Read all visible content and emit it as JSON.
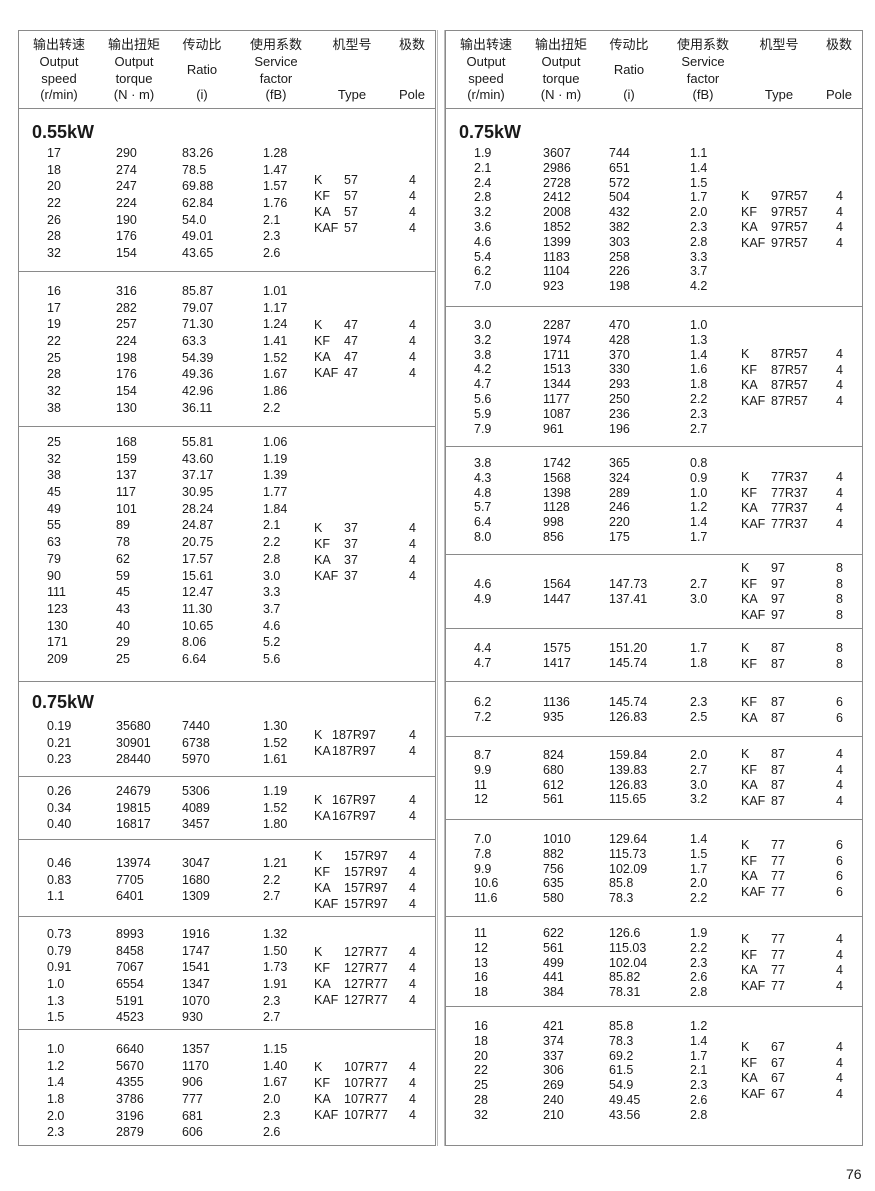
{
  "header": {
    "columns": [
      {
        "cn": "输出转速",
        "en": [
          "Output",
          "speed"
        ],
        "unit": "(r/min)"
      },
      {
        "cn": "输出扭矩",
        "en": [
          "Output",
          "torque"
        ],
        "unit": "(N · m)"
      },
      {
        "cn": "传动比",
        "en": [
          "Ratio"
        ],
        "unit": "(i)"
      },
      {
        "cn": "使用系数",
        "en": [
          "Service",
          "factor"
        ],
        "unit": "(fB)"
      },
      {
        "cn": "机型号",
        "en": [],
        "unit": "Type"
      },
      {
        "cn": "极数",
        "en": [],
        "unit": "Pole"
      }
    ]
  },
  "left": {
    "sections": [
      {
        "title": "0.55kW",
        "rows": [
          [
            "17",
            "290",
            "83.26",
            "1.28"
          ],
          [
            "18",
            "274",
            "78.5",
            "1.47"
          ],
          [
            "20",
            "247",
            "69.88",
            "1.57"
          ],
          [
            "22",
            "224",
            "62.84",
            "1.76"
          ],
          [
            "26",
            "190",
            "54.0",
            "2.1"
          ],
          [
            "28",
            "176",
            "49.01",
            "2.3"
          ],
          [
            "32",
            "154",
            "43.65",
            "2.6"
          ]
        ],
        "types": [
          [
            "K",
            "57",
            "4"
          ],
          [
            "KF",
            "57",
            "4"
          ],
          [
            "KA",
            "57",
            "4"
          ],
          [
            "KAF",
            "57",
            "4"
          ]
        ]
      },
      {
        "title": "",
        "rows": [
          [
            "16",
            "316",
            "85.87",
            "1.01"
          ],
          [
            "17",
            "282",
            "79.07",
            "1.17"
          ],
          [
            "19",
            "257",
            "71.30",
            "1.24"
          ],
          [
            "22",
            "224",
            "63.3",
            "1.41"
          ],
          [
            "25",
            "198",
            "54.39",
            "1.52"
          ],
          [
            "28",
            "176",
            "49.36",
            "1.67"
          ],
          [
            "32",
            "154",
            "42.96",
            "1.86"
          ],
          [
            "38",
            "130",
            "36.11",
            "2.2"
          ]
        ],
        "types": [
          [
            "K",
            "47",
            "4"
          ],
          [
            "KF",
            "47",
            "4"
          ],
          [
            "KA",
            "47",
            "4"
          ],
          [
            "KAF",
            "47",
            "4"
          ]
        ]
      },
      {
        "title": "",
        "rows": [
          [
            "25",
            "168",
            "55.81",
            "1.06"
          ],
          [
            "32",
            "159",
            "43.60",
            "1.19"
          ],
          [
            "38",
            "137",
            "37.17",
            "1.39"
          ],
          [
            "45",
            "117",
            "30.95",
            "1.77"
          ],
          [
            "49",
            "101",
            "28.24",
            "1.84"
          ],
          [
            "55",
            "89",
            "24.87",
            "2.1"
          ],
          [
            "63",
            "78",
            "20.75",
            "2.2"
          ],
          [
            "79",
            "62",
            "17.57",
            "2.8"
          ],
          [
            "90",
            "59",
            "15.61",
            "3.0"
          ],
          [
            "111",
            "45",
            "12.47",
            "3.3"
          ],
          [
            "123",
            "43",
            "11.30",
            "3.7"
          ],
          [
            "130",
            "40",
            "10.65",
            "4.6"
          ],
          [
            "171",
            "29",
            "8.06",
            "5.2"
          ],
          [
            "209",
            "25",
            "6.64",
            "5.6"
          ]
        ],
        "types": [
          [
            "K",
            "37",
            "4"
          ],
          [
            "KF",
            "37",
            "4"
          ],
          [
            "KA",
            "37",
            "4"
          ],
          [
            "KAF",
            "37",
            "4"
          ]
        ]
      },
      {
        "title": "0.75kW",
        "rows": [
          [
            "0.19",
            "35680",
            "7440",
            "1.30"
          ],
          [
            "0.21",
            "30901",
            "6738",
            "1.52"
          ],
          [
            "0.23",
            "28440",
            "5970",
            "1.61"
          ]
        ],
        "types": [
          [
            "K",
            "187R97",
            "4"
          ],
          [
            "KA",
            "187R97",
            "4"
          ]
        ]
      },
      {
        "title": "",
        "rows": [
          [
            "0.26",
            "24679",
            "5306",
            "1.19"
          ],
          [
            "0.34",
            "19815",
            "4089",
            "1.52"
          ],
          [
            "0.40",
            "16817",
            "3457",
            "1.80"
          ]
        ],
        "types": [
          [
            "K",
            "167R97",
            "4"
          ],
          [
            "KA",
            "167R97",
            "4"
          ]
        ]
      },
      {
        "title": "",
        "rows": [
          [
            "0.46",
            "13974",
            "3047",
            "1.21"
          ],
          [
            "0.83",
            "7705",
            "1680",
            "2.2"
          ],
          [
            "1.1",
            "6401",
            "1309",
            "2.7"
          ]
        ],
        "types": [
          [
            "K",
            "157R97",
            "4"
          ],
          [
            "KF",
            "157R97",
            "4"
          ],
          [
            "KA",
            "157R97",
            "4"
          ],
          [
            "KAF",
            "157R97",
            "4"
          ]
        ]
      },
      {
        "title": "",
        "rows": [
          [
            "0.73",
            "8993",
            "1916",
            "1.32"
          ],
          [
            "0.79",
            "8458",
            "1747",
            "1.50"
          ],
          [
            "0.91",
            "7067",
            "1541",
            "1.73"
          ],
          [
            "1.0",
            "6554",
            "1347",
            "1.91"
          ],
          [
            "1.3",
            "5191",
            "1070",
            "2.3"
          ],
          [
            "1.5",
            "4523",
            "930",
            "2.7"
          ]
        ],
        "types": [
          [
            "K",
            "127R77",
            "4"
          ],
          [
            "KF",
            "127R77",
            "4"
          ],
          [
            "KA",
            "127R77",
            "4"
          ],
          [
            "KAF",
            "127R77",
            "4"
          ]
        ]
      },
      {
        "title": "",
        "rows": [
          [
            "1.0",
            "6640",
            "1357",
            "1.15"
          ],
          [
            "1.2",
            "5670",
            "1170",
            "1.40"
          ],
          [
            "1.4",
            "4355",
            "906",
            "1.67"
          ],
          [
            "1.8",
            "3786",
            "777",
            "2.0"
          ],
          [
            "2.0",
            "3196",
            "681",
            "2.3"
          ],
          [
            "2.3",
            "2879",
            "606",
            "2.6"
          ]
        ],
        "types": [
          [
            "K",
            "107R77",
            "4"
          ],
          [
            "KF",
            "107R77",
            "4"
          ],
          [
            "KA",
            "107R77",
            "4"
          ],
          [
            "KAF",
            "107R77",
            "4"
          ]
        ]
      }
    ]
  },
  "right": {
    "sections": [
      {
        "title": "0.75kW",
        "rows": [
          [
            "1.9",
            "3607",
            "744",
            "1.1"
          ],
          [
            "2.1",
            "2986",
            "651",
            "1.4"
          ],
          [
            "2.4",
            "2728",
            "572",
            "1.5"
          ],
          [
            "2.8",
            "2412",
            "504",
            "1.7"
          ],
          [
            "3.2",
            "2008",
            "432",
            "2.0"
          ],
          [
            "3.6",
            "1852",
            "382",
            "2.3"
          ],
          [
            "4.6",
            "1399",
            "303",
            "2.8"
          ],
          [
            "5.4",
            "1183",
            "258",
            "3.3"
          ],
          [
            "6.2",
            "1104",
            "226",
            "3.7"
          ],
          [
            "7.0",
            "923",
            "198",
            "4.2"
          ]
        ],
        "types": [
          [
            "K",
            "97R57",
            "4"
          ],
          [
            "KF",
            "97R57",
            "4"
          ],
          [
            "KA",
            "97R57",
            "4"
          ],
          [
            "KAF",
            "97R57",
            "4"
          ]
        ]
      },
      {
        "title": "",
        "rows": [
          [
            "3.0",
            "2287",
            "470",
            "1.0"
          ],
          [
            "3.2",
            "1974",
            "428",
            "1.3"
          ],
          [
            "3.8",
            "1711",
            "370",
            "1.4"
          ],
          [
            "4.2",
            "1513",
            "330",
            "1.6"
          ],
          [
            "4.7",
            "1344",
            "293",
            "1.8"
          ],
          [
            "5.6",
            "1177",
            "250",
            "2.2"
          ],
          [
            "5.9",
            "1087",
            "236",
            "2.3"
          ],
          [
            "7.9",
            "961",
            "196",
            "2.7"
          ]
        ],
        "types": [
          [
            "K",
            "87R57",
            "4"
          ],
          [
            "KF",
            "87R57",
            "4"
          ],
          [
            "KA",
            "87R57",
            "4"
          ],
          [
            "KAF",
            "87R57",
            "4"
          ]
        ]
      },
      {
        "title": "",
        "rows": [
          [
            "3.8",
            "1742",
            "365",
            "0.8"
          ],
          [
            "4.3",
            "1568",
            "324",
            "0.9"
          ],
          [
            "4.8",
            "1398",
            "289",
            "1.0"
          ],
          [
            "5.7",
            "1128",
            "246",
            "1.2"
          ],
          [
            "6.4",
            "998",
            "220",
            "1.4"
          ],
          [
            "8.0",
            "856",
            "175",
            "1.7"
          ]
        ],
        "types": [
          [
            "K",
            "77R37",
            "4"
          ],
          [
            "KF",
            "77R37",
            "4"
          ],
          [
            "KA",
            "77R37",
            "4"
          ],
          [
            "KAF",
            "77R37",
            "4"
          ]
        ]
      },
      {
        "title": "",
        "rows": [
          [
            "4.6",
            "1564",
            "147.73",
            "2.7"
          ],
          [
            "4.9",
            "1447",
            "137.41",
            "3.0"
          ]
        ],
        "types": [
          [
            "K",
            "97",
            "8"
          ],
          [
            "KF",
            "97",
            "8"
          ],
          [
            "KA",
            "97",
            "8"
          ],
          [
            "KAF",
            "97",
            "8"
          ]
        ]
      },
      {
        "title": "",
        "rows": [
          [
            "4.4",
            "1575",
            "151.20",
            "1.7"
          ],
          [
            "4.7",
            "1417",
            "145.74",
            "1.8"
          ]
        ],
        "types": [
          [
            "K",
            "87",
            "8"
          ],
          [
            "KF",
            "87",
            "8"
          ]
        ]
      },
      {
        "title": "",
        "rows": [
          [
            "6.2",
            "1136",
            "145.74",
            "2.3"
          ],
          [
            "7.2",
            "935",
            "126.83",
            "2.5"
          ]
        ],
        "types": [
          [
            "KF",
            "87",
            "6"
          ],
          [
            "KA",
            "87",
            "6"
          ]
        ]
      },
      {
        "title": "",
        "rows": [
          [
            "8.7",
            "824",
            "159.84",
            "2.0"
          ],
          [
            "9.9",
            "680",
            "139.83",
            "2.7"
          ],
          [
            "11",
            "612",
            "126.83",
            "3.0"
          ],
          [
            "12",
            "561",
            "115.65",
            "3.2"
          ]
        ],
        "types": [
          [
            "K",
            "87",
            "4"
          ],
          [
            "KF",
            "87",
            "4"
          ],
          [
            "KA",
            "87",
            "4"
          ],
          [
            "KAF",
            "87",
            "4"
          ]
        ]
      },
      {
        "title": "",
        "rows": [
          [
            "7.0",
            "1010",
            "129.64",
            "1.4"
          ],
          [
            "7.8",
            "882",
            "115.73",
            "1.5"
          ],
          [
            "9.9",
            "756",
            "102.09",
            "1.7"
          ],
          [
            "10.6",
            "635",
            "85.8",
            "2.0"
          ],
          [
            "11.6",
            "580",
            "78.3",
            "2.2"
          ]
        ],
        "types": [
          [
            "K",
            "77",
            "6"
          ],
          [
            "KF",
            "77",
            "6"
          ],
          [
            "KA",
            "77",
            "6"
          ],
          [
            "KAF",
            "77",
            "6"
          ]
        ]
      },
      {
        "title": "",
        "rows": [
          [
            "11",
            "622",
            "126.6",
            "1.9"
          ],
          [
            "12",
            "561",
            "115.03",
            "2.2"
          ],
          [
            "13",
            "499",
            "102.04",
            "2.3"
          ],
          [
            "16",
            "441",
            "85.82",
            "2.6"
          ],
          [
            "18",
            "384",
            "78.31",
            "2.8"
          ]
        ],
        "types": [
          [
            "K",
            "77",
            "4"
          ],
          [
            "KF",
            "77",
            "4"
          ],
          [
            "KA",
            "77",
            "4"
          ],
          [
            "KAF",
            "77",
            "4"
          ]
        ]
      },
      {
        "title": "",
        "rows": [
          [
            "16",
            "421",
            "85.8",
            "1.2"
          ],
          [
            "18",
            "374",
            "78.3",
            "1.4"
          ],
          [
            "20",
            "337",
            "69.2",
            "1.7"
          ],
          [
            "22",
            "306",
            "61.5",
            "2.1"
          ],
          [
            "25",
            "269",
            "54.9",
            "2.3"
          ],
          [
            "28",
            "240",
            "49.45",
            "2.6"
          ],
          [
            "32",
            "210",
            "43.56",
            "2.8"
          ]
        ],
        "types": [
          [
            "K",
            "67",
            "4"
          ],
          [
            "KF",
            "67",
            "4"
          ],
          [
            "KA",
            "67",
            "4"
          ],
          [
            "KAF",
            "67",
            "4"
          ]
        ]
      }
    ]
  },
  "page_number": "76"
}
